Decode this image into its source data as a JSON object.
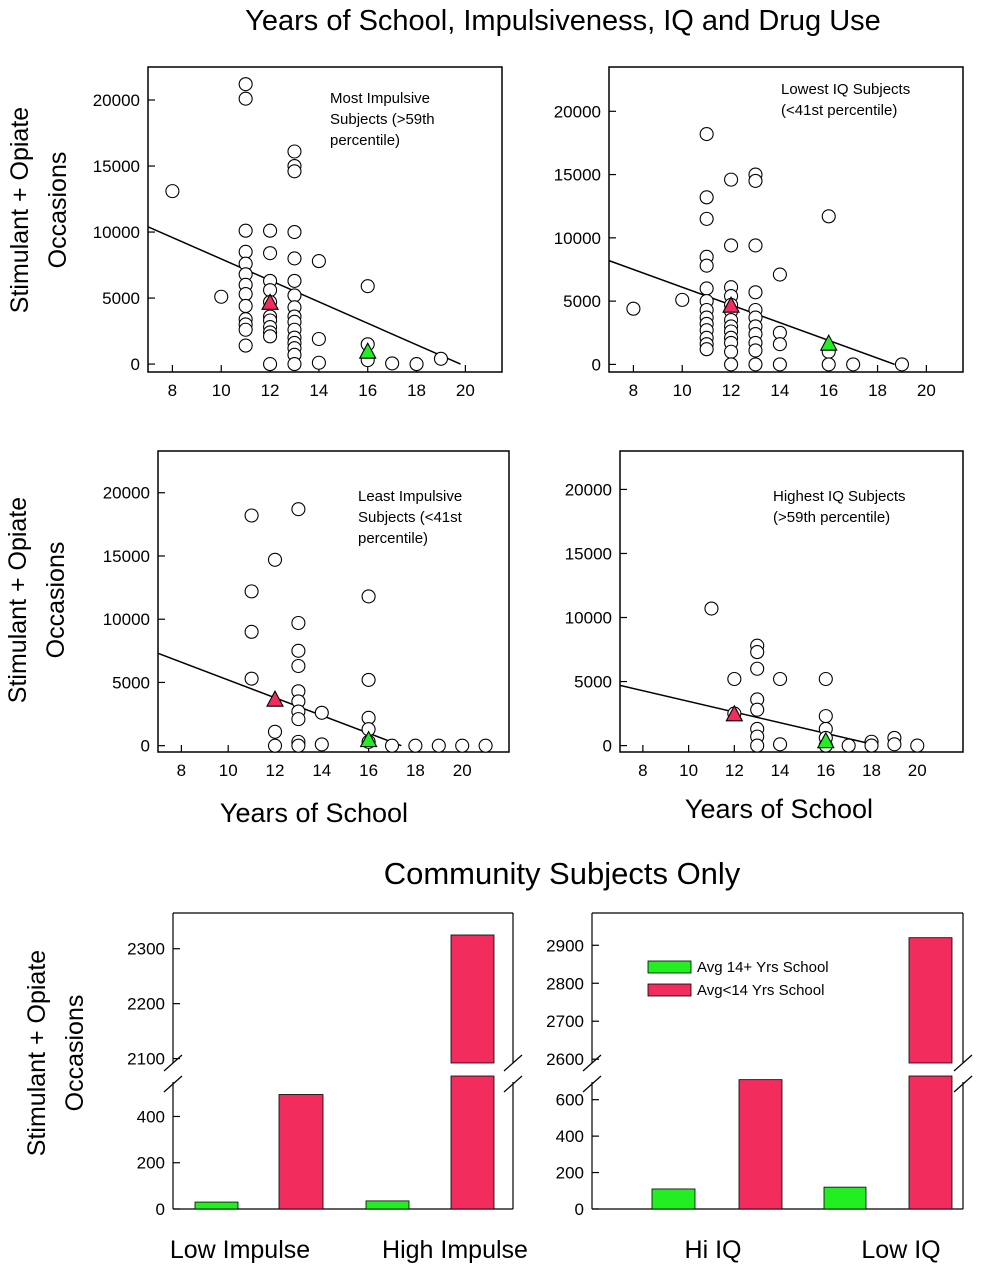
{
  "title": "Years of School, Impulsiveness, IQ and Drug Use",
  "colors": {
    "green": "#22ee22",
    "red": "#f22c5c",
    "point": "#ffffff"
  },
  "axes": {
    "scatter_ylabel_1": "Stimulant + Opiate",
    "scatter_ylabel_2": "Occasions",
    "scatter_xlabel": "Years of School",
    "bar_ylabel_1": "Stimulant + Opiate",
    "bar_ylabel_2": "Occasions"
  },
  "community": {
    "title": "Community Subjects Only",
    "legend": [
      "Avg 14+ Yrs School",
      "Avg<14 Yrs School"
    ]
  },
  "chart_data": [
    {
      "type": "scatter",
      "id": "most-impulsive",
      "title": "Most Impulsive Subjects (>59th percentile)",
      "annotation": [
        "Most Impulsive",
        "Subjects (>59th",
        "percentile)"
      ],
      "xlabel": "",
      "ylabel": "Stimulant + Opiate Occasions",
      "xlim": [
        7,
        21.5
      ],
      "ylim": [
        -600,
        22500
      ],
      "xticks": [
        8,
        10,
        12,
        14,
        16,
        18,
        20
      ],
      "yticks": [
        0,
        5000,
        10000,
        15000,
        20000
      ],
      "points": [
        [
          8,
          13100
        ],
        [
          10,
          5100
        ],
        [
          11,
          21200
        ],
        [
          11,
          20100
        ],
        [
          11,
          10100
        ],
        [
          11,
          8500
        ],
        [
          11,
          7600
        ],
        [
          11,
          6800
        ],
        [
          11,
          6000
        ],
        [
          11,
          5300
        ],
        [
          11,
          4400
        ],
        [
          11,
          3400
        ],
        [
          11,
          3000
        ],
        [
          11,
          2600
        ],
        [
          11,
          1400
        ],
        [
          12,
          10100
        ],
        [
          12,
          8400
        ],
        [
          12,
          6300
        ],
        [
          12,
          5600
        ],
        [
          12,
          4700
        ],
        [
          12,
          3600
        ],
        [
          12,
          3300
        ],
        [
          12,
          2800
        ],
        [
          12,
          2400
        ],
        [
          12,
          2100
        ],
        [
          12,
          0
        ],
        [
          13,
          16100
        ],
        [
          13,
          15000
        ],
        [
          13,
          14600
        ],
        [
          13,
          10000
        ],
        [
          13,
          8000
        ],
        [
          13,
          6300
        ],
        [
          13,
          5200
        ],
        [
          13,
          4300
        ],
        [
          13,
          3600
        ],
        [
          13,
          3200
        ],
        [
          13,
          2600
        ],
        [
          13,
          2000
        ],
        [
          13,
          1600
        ],
        [
          13,
          1200
        ],
        [
          13,
          700
        ],
        [
          13,
          0
        ],
        [
          14,
          7800
        ],
        [
          14,
          1900
        ],
        [
          14,
          100
        ],
        [
          16,
          5900
        ],
        [
          16,
          1500
        ],
        [
          16,
          300
        ],
        [
          17,
          50
        ],
        [
          18,
          0
        ],
        [
          19,
          400
        ]
      ],
      "regression": {
        "x": [
          7,
          19.8
        ],
        "y": [
          10400,
          0
        ]
      },
      "markers": [
        {
          "x": 12,
          "y": 4600,
          "color": "red",
          "label": "Avg<14 Yrs School"
        },
        {
          "x": 16,
          "y": 900,
          "color": "green",
          "label": "Avg 14+ Yrs School"
        }
      ]
    },
    {
      "type": "scatter",
      "id": "lowest-iq",
      "title": "Lowest IQ Subjects (<41st percentile)",
      "annotation": [
        "Lowest IQ Subjects",
        "(<41st percentile)"
      ],
      "xlabel": "",
      "ylabel": "",
      "xlim": [
        7,
        21.5
      ],
      "ylim": [
        -600,
        23500
      ],
      "xticks": [
        8,
        10,
        12,
        14,
        16,
        18,
        20
      ],
      "yticks": [
        0,
        5000,
        10000,
        15000,
        20000
      ],
      "points": [
        [
          8,
          4400
        ],
        [
          10,
          5100
        ],
        [
          11,
          18200
        ],
        [
          11,
          13200
        ],
        [
          11,
          11500
        ],
        [
          11,
          8500
        ],
        [
          11,
          7800
        ],
        [
          11,
          6000
        ],
        [
          11,
          5000
        ],
        [
          11,
          4300
        ],
        [
          11,
          3700
        ],
        [
          11,
          3200
        ],
        [
          11,
          2700
        ],
        [
          11,
          2100
        ],
        [
          11,
          1600
        ],
        [
          11,
          1200
        ],
        [
          12,
          14600
        ],
        [
          12,
          9400
        ],
        [
          12,
          6100
        ],
        [
          12,
          5400
        ],
        [
          12,
          4700
        ],
        [
          12,
          4200
        ],
        [
          12,
          3500
        ],
        [
          12,
          3000
        ],
        [
          12,
          2600
        ],
        [
          12,
          2100
        ],
        [
          12,
          1700
        ],
        [
          12,
          1000
        ],
        [
          12,
          0
        ],
        [
          13,
          15000
        ],
        [
          13,
          14500
        ],
        [
          13,
          9400
        ],
        [
          13,
          5700
        ],
        [
          13,
          4300
        ],
        [
          13,
          3700
        ],
        [
          13,
          3000
        ],
        [
          13,
          2400
        ],
        [
          13,
          1700
        ],
        [
          13,
          1100
        ],
        [
          13,
          0
        ],
        [
          14,
          7100
        ],
        [
          14,
          2500
        ],
        [
          14,
          1600
        ],
        [
          14,
          0
        ],
        [
          16,
          11700
        ],
        [
          16,
          1000
        ],
        [
          16,
          0
        ],
        [
          17,
          0
        ],
        [
          19,
          0
        ]
      ],
      "regression": {
        "x": [
          7,
          18.7
        ],
        "y": [
          8200,
          0
        ]
      },
      "markers": [
        {
          "x": 12,
          "y": 4600,
          "color": "red",
          "label": "Avg<14 Yrs School"
        },
        {
          "x": 16,
          "y": 1600,
          "color": "green",
          "label": "Avg 14+ Yrs School"
        }
      ]
    },
    {
      "type": "scatter",
      "id": "least-impulsive",
      "title": "Least Impulsive Subjects (<41st percentile)",
      "annotation": [
        "Least Impulsive",
        "Subjects (<41st",
        "percentile)"
      ],
      "xlabel": "Years of School",
      "ylabel": "Stimulant + Opiate Occasions",
      "xlim": [
        7,
        22
      ],
      "ylim": [
        -500,
        23300
      ],
      "xticks": [
        8,
        10,
        12,
        14,
        16,
        18,
        20
      ],
      "yticks": [
        0,
        5000,
        10000,
        15000,
        20000
      ],
      "points": [
        [
          11,
          18200
        ],
        [
          11,
          12200
        ],
        [
          11,
          9000
        ],
        [
          11,
          5300
        ],
        [
          12,
          14700
        ],
        [
          12,
          1100
        ],
        [
          12,
          0
        ],
        [
          13,
          18700
        ],
        [
          13,
          9700
        ],
        [
          13,
          7500
        ],
        [
          13,
          6300
        ],
        [
          13,
          4300
        ],
        [
          13,
          3500
        ],
        [
          13,
          2700
        ],
        [
          13,
          2100
        ],
        [
          13,
          300
        ],
        [
          13,
          0
        ],
        [
          14,
          2600
        ],
        [
          14,
          100
        ],
        [
          16,
          11800
        ],
        [
          16,
          5200
        ],
        [
          16,
          2200
        ],
        [
          16,
          1300
        ],
        [
          16,
          300
        ],
        [
          17,
          0
        ],
        [
          18,
          0
        ],
        [
          19,
          0
        ],
        [
          20,
          0
        ],
        [
          21,
          0
        ]
      ],
      "regression": {
        "x": [
          7,
          17.4
        ],
        "y": [
          7300,
          0
        ]
      },
      "markers": [
        {
          "x": 12,
          "y": 3600,
          "color": "red",
          "label": "Avg<14 Yrs School"
        },
        {
          "x": 16,
          "y": 400,
          "color": "green",
          "label": "Avg 14+ Yrs School"
        }
      ]
    },
    {
      "type": "scatter",
      "id": "highest-iq",
      "title": "Highest IQ Subjects (>59th percentile)",
      "annotation": [
        "Highest IQ Subjects",
        "(>59th percentile)"
      ],
      "xlabel": "Years of School",
      "ylabel": "",
      "xlim": [
        7,
        22
      ],
      "ylim": [
        -500,
        23000
      ],
      "xticks": [
        8,
        10,
        12,
        14,
        16,
        18,
        20
      ],
      "yticks": [
        0,
        5000,
        10000,
        15000,
        20000
      ],
      "points": [
        [
          11,
          10700
        ],
        [
          12,
          5200
        ],
        [
          12,
          2500
        ],
        [
          13,
          7800
        ],
        [
          13,
          7300
        ],
        [
          13,
          6000
        ],
        [
          13,
          3600
        ],
        [
          13,
          2800
        ],
        [
          13,
          1300
        ],
        [
          13,
          700
        ],
        [
          13,
          0
        ],
        [
          14,
          5200
        ],
        [
          14,
          100
        ],
        [
          16,
          5200
        ],
        [
          16,
          2300
        ],
        [
          16,
          1300
        ],
        [
          16,
          600
        ],
        [
          16,
          0
        ],
        [
          17,
          0
        ],
        [
          18,
          300
        ],
        [
          18,
          0
        ],
        [
          19,
          600
        ],
        [
          19,
          100
        ],
        [
          20,
          0
        ]
      ],
      "regression": {
        "x": [
          7,
          18.3
        ],
        "y": [
          4700,
          0
        ]
      },
      "markers": [
        {
          "x": 12,
          "y": 2400,
          "color": "red",
          "label": "Avg<14 Yrs School"
        },
        {
          "x": 16,
          "y": 300,
          "color": "green",
          "label": "Avg 14+ Yrs School"
        }
      ]
    },
    {
      "type": "bar",
      "id": "community-impulse",
      "title": "Community Subjects Only",
      "categories": [
        "Low Impulse",
        "High Impulse"
      ],
      "series": [
        {
          "name": "Avg 14+ Yrs School",
          "color": "green",
          "values": [
            30,
            35
          ]
        },
        {
          "name": "Avg<14 Yrs School",
          "color": "red",
          "values": [
            495,
            2325
          ]
        }
      ],
      "broken_axis": {
        "lower_range": [
          0,
          575
        ],
        "upper_range": [
          2092,
          2365
        ]
      },
      "yticks_lower": [
        0,
        200,
        400
      ],
      "yticks_upper": [
        2100,
        2200,
        2300
      ],
      "ylabel": "Stimulant + Opiate Occasions"
    },
    {
      "type": "bar",
      "id": "community-iq",
      "title": "Community Subjects Only",
      "categories": [
        "Hi IQ",
        "Low IQ"
      ],
      "series": [
        {
          "name": "Avg 14+ Yrs School",
          "color": "green",
          "values": [
            110,
            120
          ]
        },
        {
          "name": "Avg<14 Yrs School",
          "color": "red",
          "values": [
            710,
            2920
          ]
        }
      ],
      "broken_axis": {
        "lower_range": [
          0,
          730
        ],
        "upper_range": [
          2590,
          2985
        ]
      },
      "yticks_lower": [
        0,
        200,
        400,
        600
      ],
      "yticks_upper": [
        2600,
        2700,
        2800,
        2900
      ],
      "ylabel": "",
      "legend_position": "top-left"
    }
  ]
}
